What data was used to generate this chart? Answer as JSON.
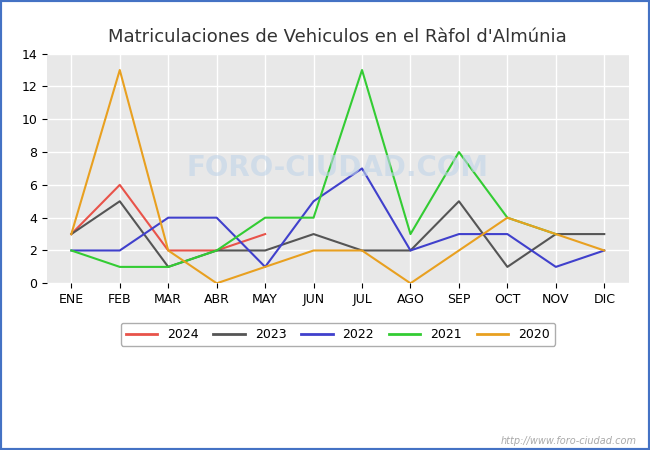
{
  "title": "Matriculaciones de Vehiculos en el Ràfol d'Almúnia",
  "months": [
    "ENE",
    "FEB",
    "MAR",
    "ABR",
    "MAY",
    "JUN",
    "JUL",
    "AGO",
    "SEP",
    "OCT",
    "NOV",
    "DIC"
  ],
  "ylim": [
    0,
    14
  ],
  "yticks": [
    0,
    2,
    4,
    6,
    8,
    10,
    12,
    14
  ],
  "series": {
    "2024": {
      "color": "#e8534a",
      "data": [
        3,
        6,
        2,
        2,
        3,
        null,
        null,
        null,
        null,
        null,
        null,
        null
      ]
    },
    "2023": {
      "color": "#555555",
      "data": [
        3,
        5,
        1,
        2,
        2,
        3,
        2,
        2,
        5,
        1,
        3,
        3
      ]
    },
    "2022": {
      "color": "#4040cc",
      "data": [
        2,
        2,
        4,
        4,
        1,
        5,
        7,
        2,
        3,
        3,
        1,
        2
      ]
    },
    "2021": {
      "color": "#33cc33",
      "data": [
        2,
        1,
        1,
        2,
        4,
        4,
        13,
        3,
        8,
        4,
        3,
        null
      ]
    },
    "2020": {
      "color": "#e8a020",
      "data": [
        3,
        13,
        2,
        0,
        1,
        2,
        2,
        0,
        2,
        4,
        3,
        2
      ]
    }
  },
  "legend_order": [
    "2024",
    "2023",
    "2022",
    "2021",
    "2020"
  ],
  "watermark": "http://www.foro-ciudad.com",
  "outer_bg_color": "#ffffff",
  "plot_bg_color": "#e8e8e8",
  "grid_color": "#ffffff",
  "border_color": "#4472c4",
  "title_color": "#333333",
  "title_fontsize": 13,
  "tick_fontsize": 9,
  "line_width": 1.5,
  "watermark_color": "#aaaaaa",
  "watermark_fontsize": 7,
  "foro_watermark_color": "#c0d4e8",
  "foro_watermark_alpha": 0.6,
  "foro_watermark_fontsize": 20
}
